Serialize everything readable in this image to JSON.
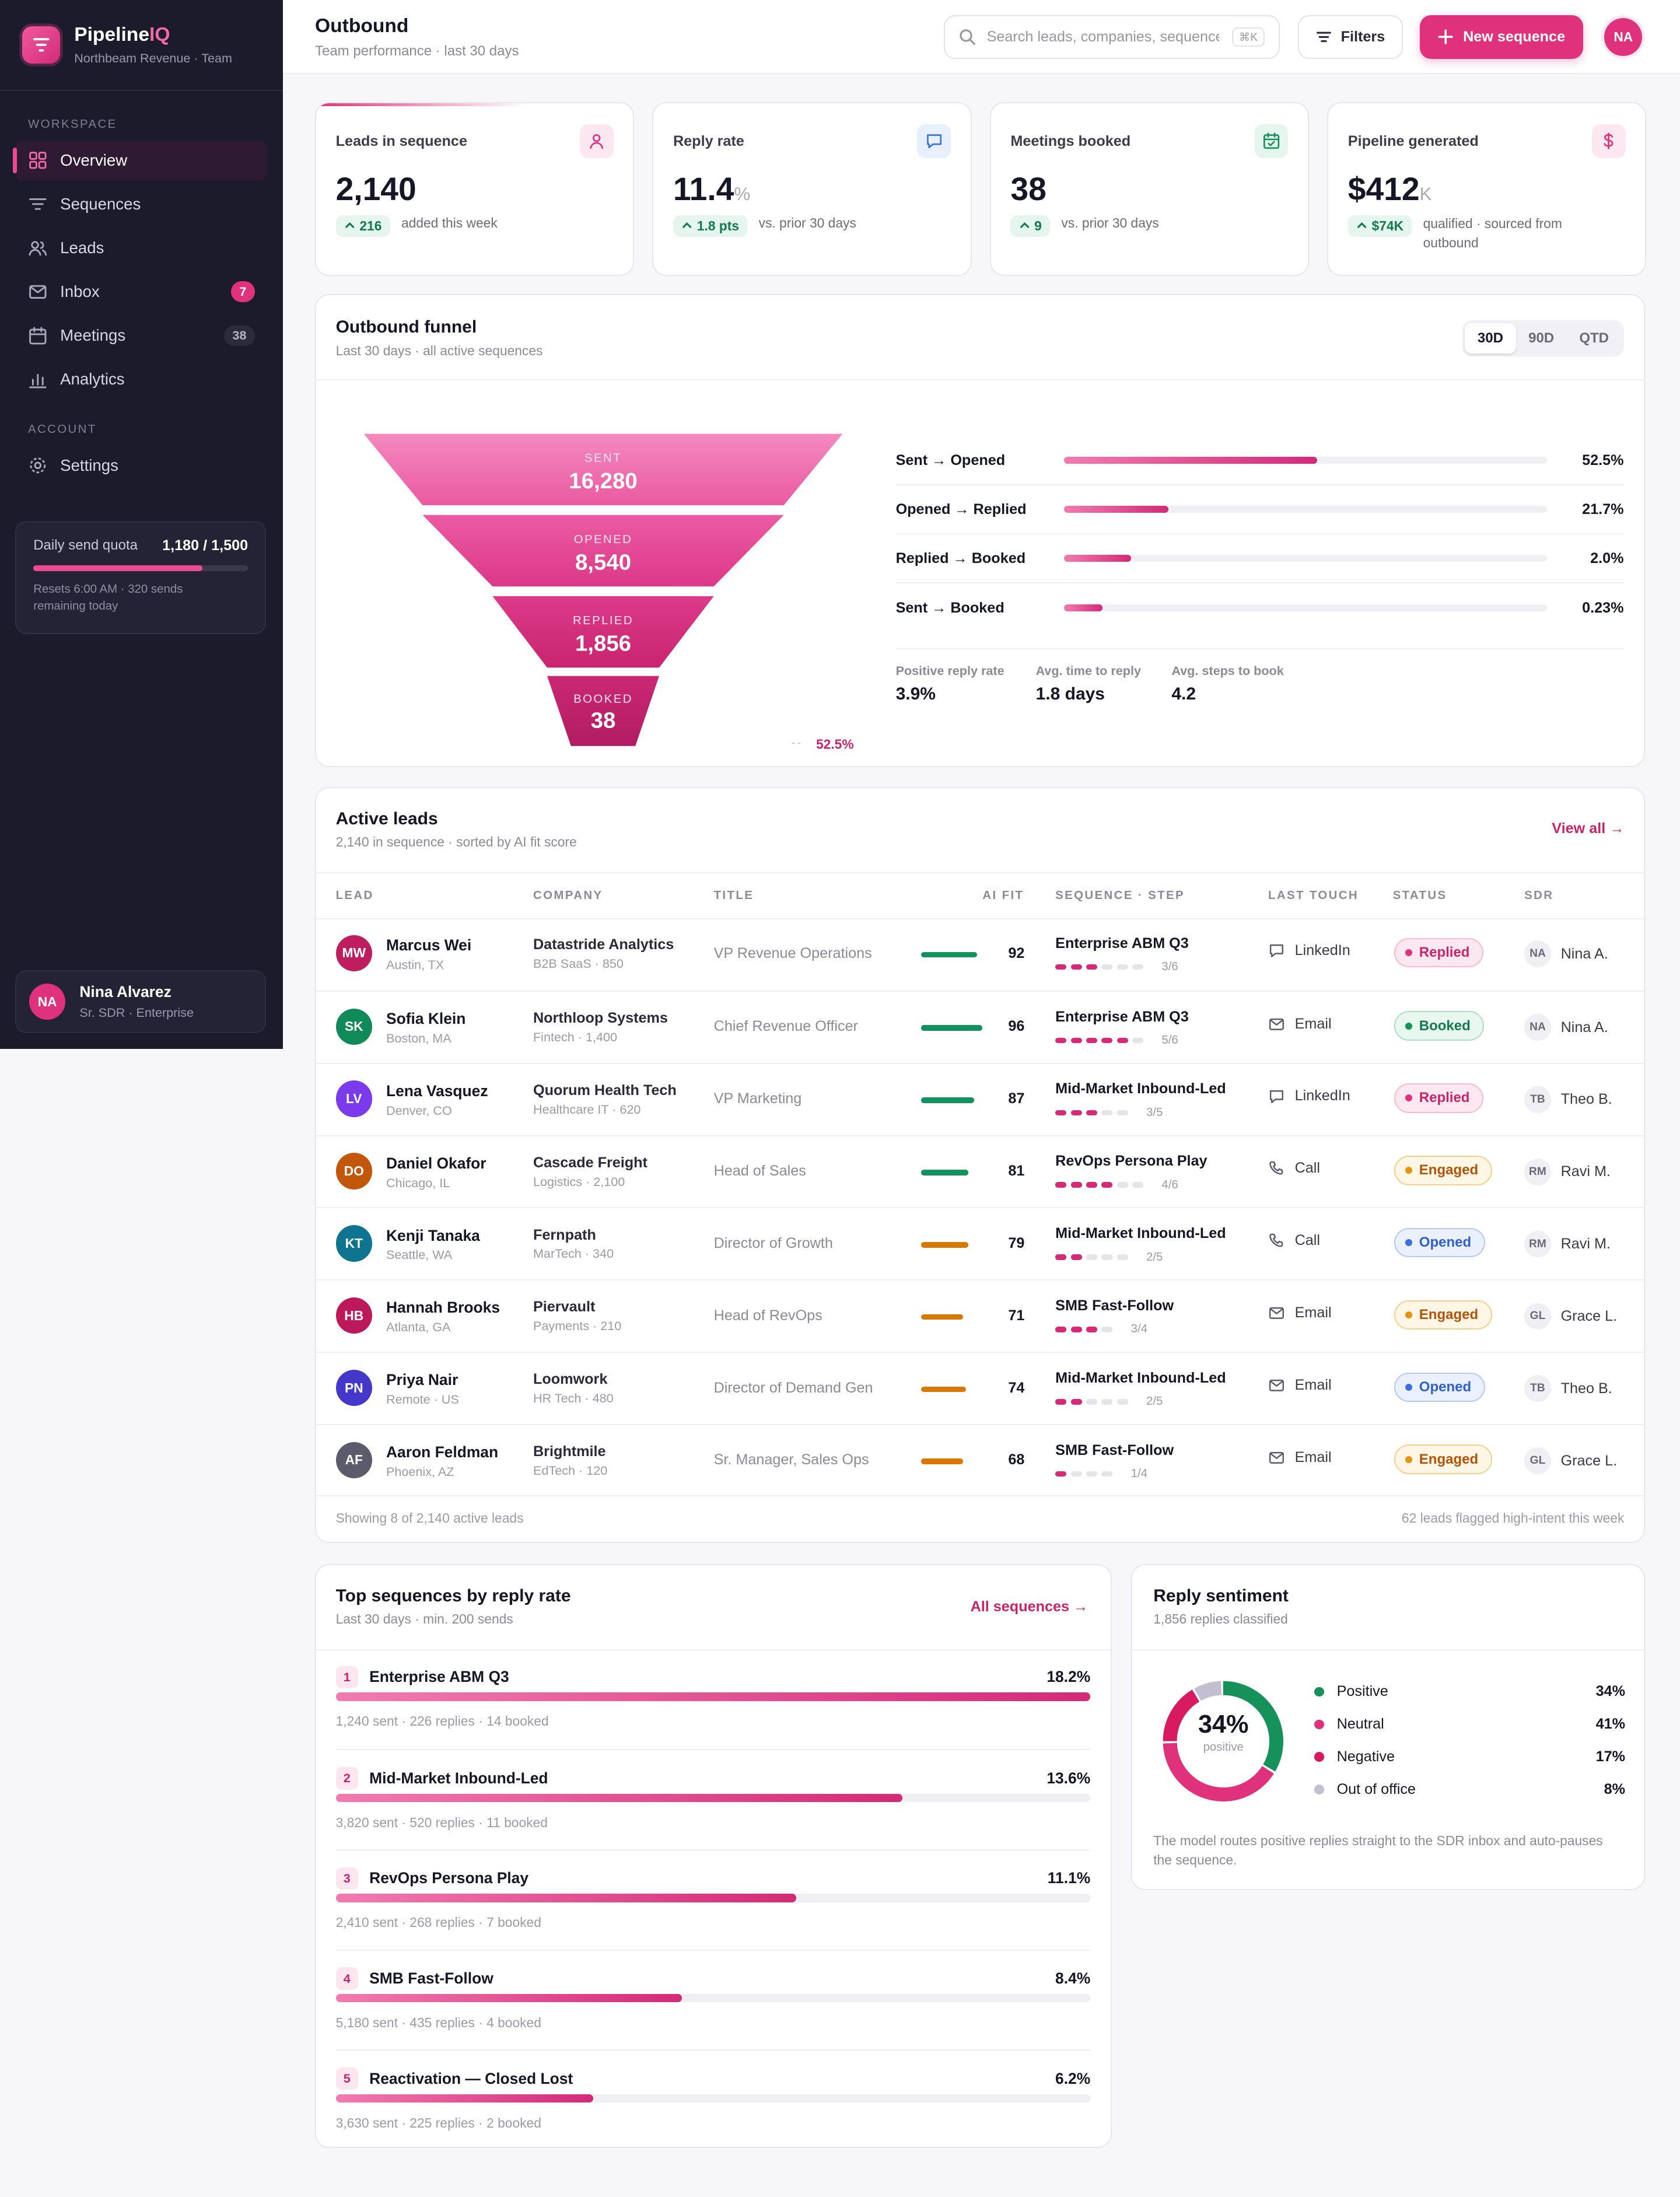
{
  "brand": {
    "name_a": "Pipeline",
    "name_b": "IQ",
    "subtitle": "Northbeam Revenue · Team"
  },
  "sidebar": {
    "workspace_label": "WORKSPACE",
    "account_label": "ACCOUNT",
    "items": [
      {
        "label": "Overview",
        "icon": "grid-icon",
        "active": true
      },
      {
        "label": "Sequences",
        "icon": "filter-icon"
      },
      {
        "label": "Leads",
        "icon": "users-icon"
      },
      {
        "label": "Inbox",
        "icon": "mail-icon",
        "badge": "7"
      },
      {
        "label": "Meetings",
        "icon": "calendar-icon",
        "badge": "38"
      },
      {
        "label": "Analytics",
        "icon": "bar-chart-icon"
      }
    ],
    "settings_label": "Settings",
    "quota": {
      "label": "Daily send quota",
      "value": "1,180 / 1,500",
      "fraction": 0.787,
      "note_1": "Resets 6:00 AM · 320 sends",
      "note_2": "remaining today"
    },
    "user": {
      "initials": "NA",
      "name": "Nina Alvarez",
      "role": "Sr. SDR · Enterprise"
    }
  },
  "header": {
    "title": "Outbound",
    "subtitle": "Team performance · last 30 days",
    "search_placeholder": "Search leads, companies, sequences",
    "search_kbd": "⌘K",
    "filters_label": "Filters",
    "new_label": "New sequence",
    "avatar": "NA"
  },
  "kpis": [
    {
      "label": "Leads in sequence",
      "value": "2,140",
      "unit": "",
      "delta": "216",
      "note": "added this week",
      "icon": "user-icon",
      "color": "#e0327c",
      "bg": "#fde8f1"
    },
    {
      "label": "Reply rate",
      "value": "11.4",
      "unit": "%",
      "delta": "1.8 pts",
      "note": "vs. prior 30 days",
      "icon": "chat-icon",
      "color": "#3b6fe0",
      "bg": "#e8effd"
    },
    {
      "label": "Meetings booked",
      "value": "38",
      "unit": "",
      "delta": "9",
      "note": "vs. prior 30 days",
      "icon": "calendar-check-icon",
      "color": "#17915a",
      "bg": "#e5f6ee"
    },
    {
      "label": "Pipeline generated",
      "value": "$412",
      "unit": "K",
      "delta": "$74K",
      "note": "qualified · sourced from outbound",
      "icon": "dollar-icon",
      "color": "#e0327c",
      "bg": "#fde8f1"
    }
  ],
  "funnel": {
    "title": "Outbound funnel",
    "subtitle": "Last 30 days · all active sequences",
    "ranges": [
      "30D",
      "90D",
      "QTD"
    ],
    "stages": [
      {
        "label": "SENT",
        "value": "16,280"
      },
      {
        "label": "OPENED",
        "value": "8,540",
        "rate": "52.5%"
      },
      {
        "label": "REPLIED",
        "value": "1,856",
        "rate": "21.7%"
      },
      {
        "label": "BOOKED",
        "value": "38",
        "rate": "2.0%"
      }
    ],
    "conversions": [
      {
        "label": "Sent → Opened",
        "pct": "52.5%",
        "fraction": 0.525
      },
      {
        "label": "Opened → Replied",
        "pct": "21.7%",
        "fraction": 0.217
      },
      {
        "label": "Replied → Booked",
        "pct": "2.0%",
        "fraction": 0.14
      },
      {
        "label": "Sent → Booked",
        "pct": "0.23%",
        "fraction": 0.08
      }
    ],
    "stats": [
      {
        "label": "Positive reply rate",
        "value": "3.9%"
      },
      {
        "label": "Avg. time to reply",
        "value": "1.8 days"
      },
      {
        "label": "Avg. steps to book",
        "value": "4.2"
      }
    ]
  },
  "leads": {
    "title": "Active leads",
    "subtitle": "2,140 in sequence · sorted by AI fit score",
    "view_all": "View all →",
    "columns": [
      "LEAD",
      "COMPANY",
      "TITLE",
      "AI FIT",
      "SEQUENCE · STEP",
      "LAST TOUCH",
      "STATUS",
      "SDR"
    ],
    "rows": [
      {
        "initials": "MW",
        "avatar": "#be1d5f",
        "name": "Marcus Wei",
        "loc": "Austin, TX",
        "company": "Datastride Analytics",
        "co_sub": "B2B SaaS · 850",
        "title": "VP Revenue Operations",
        "fit": "92",
        "fit_color": "#13915e",
        "seq": "Enterprise ABM Q3",
        "step": "3/6",
        "done": 3,
        "total": 6,
        "touch": "LinkedIn",
        "touch_icon": "chat-icon",
        "status": "Replied",
        "sdr_i": "NA",
        "sdr": "Nina A."
      },
      {
        "initials": "SK",
        "avatar": "#118a5a",
        "name": "Sofia Klein",
        "loc": "Boston, MA",
        "company": "Northloop Systems",
        "co_sub": "Fintech · 1,400",
        "title": "Chief Revenue Officer",
        "fit": "96",
        "fit_color": "#13915e",
        "seq": "Enterprise ABM Q3",
        "step": "5/6",
        "done": 5,
        "total": 6,
        "touch": "Email",
        "touch_icon": "mail-icon",
        "status": "Booked",
        "sdr_i": "NA",
        "sdr": "Nina A."
      },
      {
        "initials": "LV",
        "avatar": "#7c3aed",
        "name": "Lena Vasquez",
        "loc": "Denver, CO",
        "company": "Quorum Health Tech",
        "co_sub": "Healthcare IT · 620",
        "title": "VP Marketing",
        "fit": "87",
        "fit_color": "#13915e",
        "seq": "Mid-Market Inbound-Led",
        "step": "3/5",
        "done": 3,
        "total": 5,
        "touch": "LinkedIn",
        "touch_icon": "chat-icon",
        "status": "Replied",
        "sdr_i": "TB",
        "sdr": "Theo B."
      },
      {
        "initials": "DO",
        "avatar": "#c2570c",
        "name": "Daniel Okafor",
        "loc": "Chicago, IL",
        "company": "Cascade Freight",
        "co_sub": "Logistics · 2,100",
        "title": "Head of Sales",
        "fit": "81",
        "fit_color": "#13915e",
        "seq": "RevOps Persona Play",
        "step": "4/6",
        "done": 4,
        "total": 6,
        "touch": "Call",
        "touch_icon": "phone-icon",
        "status": "Engaged",
        "sdr_i": "RM",
        "sdr": "Ravi M."
      },
      {
        "initials": "KT",
        "avatar": "#0e7490",
        "name": "Kenji Tanaka",
        "loc": "Seattle, WA",
        "company": "Fernpath",
        "co_sub": "MarTech · 340",
        "title": "Director of Growth",
        "fit": "79",
        "fit_color": "#d97706",
        "seq": "Mid-Market Inbound-Led",
        "step": "2/5",
        "done": 2,
        "total": 5,
        "touch": "Call",
        "touch_icon": "phone-icon",
        "status": "Opened",
        "sdr_i": "RM",
        "sdr": "Ravi M."
      },
      {
        "initials": "HB",
        "avatar": "#be185d",
        "name": "Hannah Brooks",
        "loc": "Atlanta, GA",
        "company": "Piervault",
        "co_sub": "Payments · 210",
        "title": "Head of RevOps",
        "fit": "71",
        "fit_color": "#d97706",
        "seq": "SMB Fast-Follow",
        "step": "3/4",
        "done": 3,
        "total": 4,
        "touch": "Email",
        "touch_icon": "mail-icon",
        "status": "Engaged",
        "sdr_i": "GL",
        "sdr": "Grace L."
      },
      {
        "initials": "PN",
        "avatar": "#4338ca",
        "name": "Priya Nair",
        "loc": "Remote · US",
        "company": "Loomwork",
        "co_sub": "HR Tech · 480",
        "title": "Director of Demand Gen",
        "fit": "74",
        "fit_color": "#d97706",
        "seq": "Mid-Market Inbound-Led",
        "step": "2/5",
        "done": 2,
        "total": 5,
        "touch": "Email",
        "touch_icon": "mail-icon",
        "status": "Opened",
        "sdr_i": "TB",
        "sdr": "Theo B."
      },
      {
        "initials": "AF",
        "avatar": "#5b5b6b",
        "name": "Aaron Feldman",
        "loc": "Phoenix, AZ",
        "company": "Brightmile",
        "co_sub": "EdTech · 120",
        "title": "Sr. Manager, Sales Ops",
        "fit": "68",
        "fit_color": "#d97706",
        "seq": "SMB Fast-Follow",
        "step": "1/4",
        "done": 1,
        "total": 4,
        "touch": "Email",
        "touch_icon": "mail-icon",
        "status": "Engaged",
        "sdr_i": "GL",
        "sdr": "Grace L."
      }
    ],
    "footer_left": "Showing 8 of 2,140 active leads",
    "footer_right": "62 leads flagged high-intent this week"
  },
  "status_styles": {
    "Replied": {
      "fg": "#c8246c",
      "bg": "#fde8f1",
      "bd": "#f8b9d3",
      "dot": "#e0327c"
    },
    "Booked": {
      "fg": "#127a4c",
      "bg": "#e8f7ef",
      "bd": "#a9dfc3",
      "dot": "#17915a"
    },
    "Engaged": {
      "fg": "#b45309",
      "bg": "#fff6e6",
      "bd": "#f5d08a",
      "dot": "#e8920c"
    },
    "Opened": {
      "fg": "#2f5fd0",
      "bg": "#eaf0fd",
      "bd": "#b5c9f5",
      "dot": "#3b6fe0"
    }
  },
  "sequences": {
    "title": "Top sequences by reply rate",
    "subtitle": "Last 30 days · min. 200 sends",
    "link": "All sequences →",
    "items": [
      {
        "rank": "1",
        "name": "Enterprise ABM Q3",
        "rate": "18.2%",
        "fraction": 1.0,
        "meta": "1,240 sent · 226 replies · 14 booked"
      },
      {
        "rank": "2",
        "name": "Mid-Market Inbound-Led",
        "rate": "13.6%",
        "fraction": 0.751,
        "meta": "3,820 sent · 520 replies · 11 booked"
      },
      {
        "rank": "3",
        "name": "RevOps Persona Play",
        "rate": "11.1%",
        "fraction": 0.61,
        "meta": "2,410 sent · 268 replies · 7 booked"
      },
      {
        "rank": "4",
        "name": "SMB Fast-Follow",
        "rate": "8.4%",
        "fraction": 0.459,
        "meta": "5,180 sent · 435 replies · 4 booked"
      },
      {
        "rank": "5",
        "name": "Reactivation — Closed Lost",
        "rate": "6.2%",
        "fraction": 0.341,
        "meta": "3,630 sent · 225 replies · 2 booked"
      }
    ]
  },
  "sentiment": {
    "title": "Reply sentiment",
    "subtitle": "1,856 replies classified",
    "center_value": "34%",
    "center_label": "positive",
    "items": [
      {
        "label": "Positive",
        "pct": "34%",
        "value": 34,
        "color": "#17915a"
      },
      {
        "label": "Neutral",
        "pct": "41%",
        "value": 41,
        "color": "#e0327c"
      },
      {
        "label": "Negative",
        "pct": "17%",
        "value": 17,
        "color": "#d81b60"
      },
      {
        "label": "Out of office",
        "pct": "8%",
        "value": 8,
        "color": "#c4bfd0"
      }
    ],
    "note": "The model routes positive replies straight to the SDR inbox and auto-pauses the sequence."
  }
}
